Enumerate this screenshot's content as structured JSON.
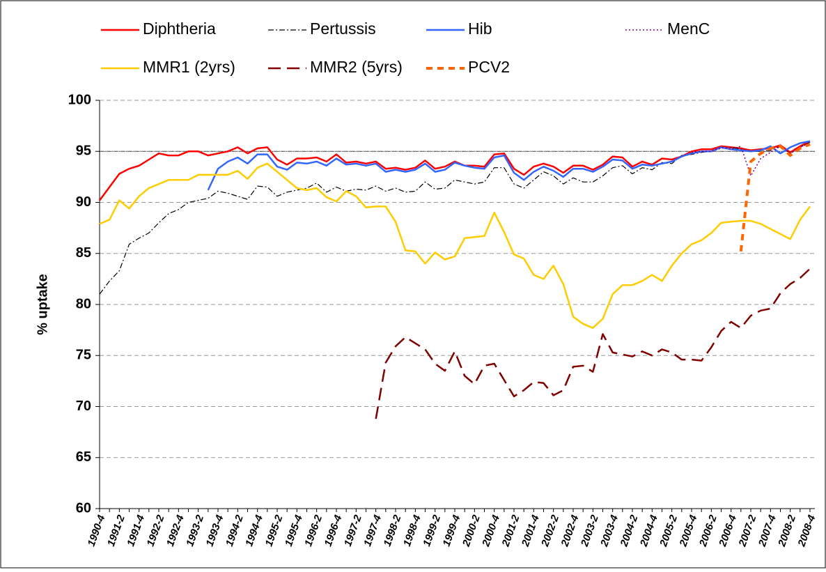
{
  "chart_data": {
    "type": "line",
    "y_label": "% uptake",
    "categories": [
      "1990-4",
      null,
      "1991-2",
      null,
      "1991-4",
      null,
      "1992-2",
      null,
      "1992-4",
      null,
      "1993-2",
      null,
      "1993-4",
      null,
      "1994-2",
      null,
      "1994-4",
      null,
      "1995-2",
      null,
      "1995-4",
      null,
      "1996-2",
      null,
      "1996-4",
      null,
      "1997-2",
      null,
      "1997-4",
      null,
      "1998-2",
      null,
      "1998-4",
      null,
      "1999-2",
      null,
      "1999-4",
      null,
      "2000-2",
      null,
      "2000-4",
      null,
      "2001-2",
      null,
      "2001-4",
      null,
      "2002-2",
      null,
      "2002-4",
      null,
      "2003-2",
      null,
      "2003-4",
      null,
      "2004-2",
      null,
      "2004-4",
      null,
      "2005-2",
      null,
      "2005-4",
      null,
      "2006-2",
      null,
      "2006-4",
      null,
      "2007-2",
      null,
      "2007-4",
      null,
      "2008-2",
      null,
      "2008-4"
    ],
    "ylim": [
      60,
      100
    ],
    "yticks": [
      60,
      65,
      70,
      75,
      80,
      85,
      90,
      95,
      100
    ],
    "grid": true,
    "reference_line": 95,
    "series": [
      {
        "name": "Diphtheria",
        "color": "#ff0000",
        "dash": "none",
        "width": 2.5,
        "values": [
          90.2,
          91.5,
          92.8,
          93.3,
          93.6,
          94.2,
          94.8,
          94.6,
          94.6,
          95.0,
          95.0,
          94.6,
          94.8,
          95.0,
          95.4,
          94.8,
          95.3,
          95.4,
          94.2,
          93.7,
          94.3,
          94.3,
          94.4,
          94.0,
          94.7,
          93.9,
          94.0,
          93.8,
          94.0,
          93.3,
          93.4,
          93.2,
          93.4,
          94.1,
          93.3,
          93.5,
          94.0,
          93.6,
          93.6,
          93.5,
          94.7,
          94.8,
          93.3,
          92.7,
          93.5,
          93.8,
          93.5,
          92.9,
          93.6,
          93.6,
          93.2,
          93.7,
          94.5,
          94.4,
          93.5,
          94.0,
          93.7,
          94.3,
          94.2,
          94.5,
          95.0,
          95.2,
          95.2,
          95.5,
          95.4,
          95.3,
          95.1,
          95.2,
          95.3,
          95.6,
          94.9,
          95.5,
          96.0
        ]
      },
      {
        "name": "Pertussis",
        "color": "#000000",
        "dash": "8,3,2,3",
        "width": 1.2,
        "values": [
          81.0,
          82.3,
          83.3,
          85.9,
          86.5,
          87.0,
          88.0,
          88.9,
          89.3,
          90.0,
          90.2,
          90.4,
          91.1,
          90.9,
          90.6,
          90.3,
          91.6,
          91.5,
          90.6,
          91.0,
          91.2,
          91.4,
          91.9,
          91.0,
          91.5,
          91.1,
          91.3,
          91.2,
          91.6,
          91.1,
          91.4,
          91.0,
          91.1,
          92.0,
          91.3,
          91.4,
          92.2,
          92.0,
          91.8,
          92.0,
          93.4,
          93.4,
          91.8,
          91.4,
          92.2,
          93.0,
          92.6,
          91.8,
          92.4,
          92.0,
          92.0,
          92.6,
          93.4,
          93.6,
          92.8,
          93.4,
          93.2,
          93.9,
          93.8,
          94.6,
          94.7,
          94.9,
          95.0,
          95.3,
          95.4,
          95.2,
          95.0,
          95.0,
          95.1,
          95.5,
          94.8,
          95.4,
          95.9
        ]
      },
      {
        "name": "Hib",
        "color": "#3366ff",
        "dash": "none",
        "width": 2.5,
        "values": [
          null,
          null,
          null,
          null,
          null,
          null,
          null,
          null,
          null,
          null,
          null,
          91.2,
          93.3,
          94.0,
          94.4,
          93.8,
          94.7,
          94.7,
          93.5,
          93.2,
          93.9,
          93.8,
          94.0,
          93.6,
          94.3,
          93.7,
          93.8,
          93.6,
          93.8,
          93.0,
          93.2,
          93.0,
          93.2,
          93.8,
          93.0,
          93.2,
          93.9,
          93.6,
          93.4,
          93.3,
          94.4,
          94.6,
          92.9,
          92.2,
          93.0,
          93.5,
          93.1,
          92.5,
          93.3,
          93.3,
          93.0,
          93.5,
          94.2,
          94.1,
          93.3,
          93.7,
          93.6,
          93.8,
          94.0,
          94.5,
          94.8,
          95.0,
          95.0,
          95.4,
          95.2,
          95.1,
          95.0,
          95.1,
          95.5,
          94.8,
          95.4,
          95.8,
          96.0
        ]
      },
      {
        "name": "MenC",
        "color": "#800080",
        "dash": "2,3",
        "width": 1.5,
        "values": [
          null,
          null,
          null,
          null,
          null,
          null,
          null,
          null,
          null,
          null,
          null,
          null,
          null,
          null,
          null,
          null,
          null,
          null,
          null,
          null,
          null,
          null,
          null,
          null,
          null,
          null,
          null,
          null,
          null,
          null,
          null,
          null,
          null,
          null,
          null,
          null,
          null,
          null,
          null,
          null,
          null,
          null,
          null,
          null,
          null,
          null,
          null,
          null,
          null,
          null,
          null,
          null,
          null,
          null,
          null,
          null,
          null,
          null,
          null,
          null,
          94.9,
          95.0,
          95.0,
          95.4,
          95.2,
          95.5,
          92.6,
          94.3,
          94.9,
          95.5,
          94.8,
          95.4,
          95.8
        ]
      },
      {
        "name": "MMR1 (2yrs)",
        "color": "#ffcc00",
        "dash": "none",
        "width": 2.5,
        "values": [
          87.9,
          88.3,
          90.2,
          89.4,
          90.6,
          91.4,
          91.8,
          92.2,
          92.2,
          92.2,
          92.7,
          92.7,
          92.7,
          92.7,
          93.1,
          92.3,
          93.4,
          93.8,
          93.0,
          92.2,
          91.4,
          91.2,
          91.4,
          90.5,
          90.1,
          91.1,
          90.6,
          89.5,
          89.6,
          89.6,
          88.1,
          85.3,
          85.2,
          84.0,
          85.1,
          84.4,
          84.7,
          86.5,
          86.6,
          86.7,
          89.0,
          87.1,
          84.9,
          84.5,
          82.9,
          82.5,
          83.8,
          82.0,
          78.8,
          78.1,
          77.7,
          78.6,
          81.0,
          81.9,
          81.9,
          82.3,
          82.9,
          82.3,
          83.8,
          85.0,
          85.9,
          86.3,
          87.0,
          88.0,
          88.1,
          88.2,
          88.2,
          87.9,
          87.4,
          86.9,
          86.4,
          88.3,
          89.6
        ]
      },
      {
        "name": "MMR2 (5yrs)",
        "color": "#800000",
        "dash": "18,9",
        "width": 2.5,
        "values": [
          null,
          null,
          null,
          null,
          null,
          null,
          null,
          null,
          null,
          null,
          null,
          null,
          null,
          null,
          null,
          null,
          null,
          null,
          null,
          null,
          null,
          null,
          null,
          null,
          null,
          null,
          null,
          null,
          68.8,
          74.3,
          75.9,
          76.8,
          76.2,
          75.6,
          74.2,
          73.5,
          75.4,
          73.0,
          72.2,
          74.0,
          74.2,
          72.6,
          71.0,
          71.6,
          72.4,
          72.3,
          71.1,
          71.6,
          73.9,
          74.0,
          73.4,
          77.1,
          75.3,
          75.1,
          74.9,
          75.4,
          75.0,
          75.6,
          75.3,
          74.6,
          74.6,
          74.5,
          75.8,
          77.4,
          78.3,
          77.7,
          78.9,
          79.4,
          79.6,
          81.1,
          82.0,
          82.6,
          83.5
        ]
      },
      {
        "name": "PCV2",
        "color": "#ff6600",
        "dash": "9,7",
        "width": 4,
        "values": [
          null,
          null,
          null,
          null,
          null,
          null,
          null,
          null,
          null,
          null,
          null,
          null,
          null,
          null,
          null,
          null,
          null,
          null,
          null,
          null,
          null,
          null,
          null,
          null,
          null,
          null,
          null,
          null,
          null,
          null,
          null,
          null,
          null,
          null,
          null,
          null,
          null,
          null,
          null,
          null,
          null,
          null,
          null,
          null,
          null,
          null,
          null,
          null,
          null,
          null,
          null,
          null,
          null,
          null,
          null,
          null,
          null,
          null,
          null,
          null,
          null,
          null,
          null,
          null,
          null,
          85.2,
          94.0,
          94.8,
          95.3,
          95.5,
          94.6,
          95.3,
          95.7
        ]
      }
    ]
  }
}
